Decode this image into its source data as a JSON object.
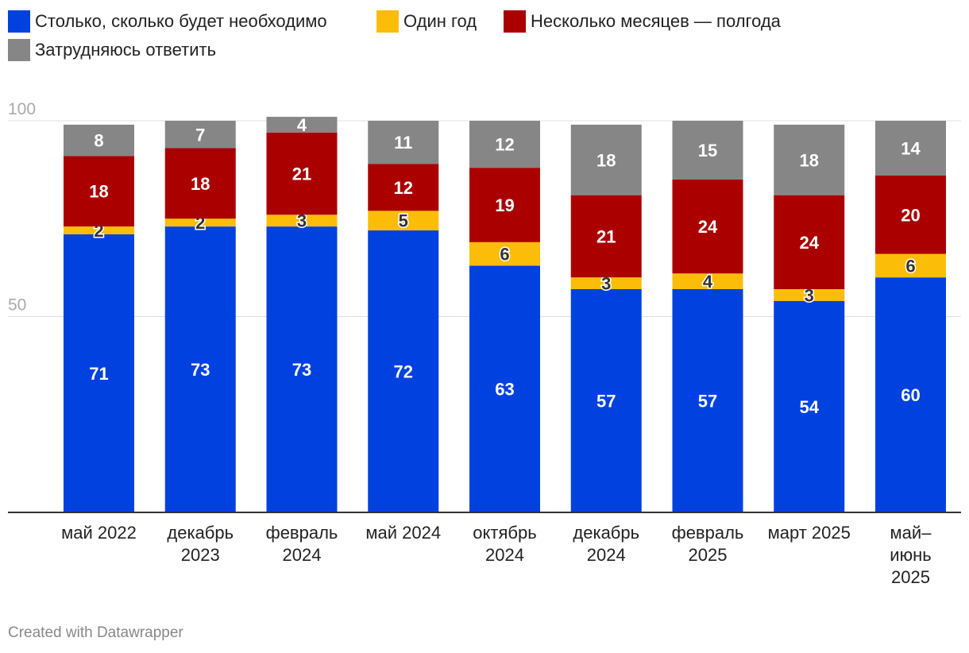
{
  "chart_data": {
    "type": "bar",
    "stacked": true,
    "categories": [
      [
        "май 2022"
      ],
      [
        "декабрь",
        "2023"
      ],
      [
        "февраль",
        "2024"
      ],
      [
        "май 2024"
      ],
      [
        "октябрь",
        "2024"
      ],
      [
        "декабрь",
        "2024"
      ],
      [
        "февраль",
        "2025"
      ],
      [
        "март 2025"
      ],
      [
        "май–",
        "июнь",
        "2025"
      ]
    ],
    "series": [
      {
        "name": "Столько, сколько будет необходимо",
        "color": "#0041e0",
        "label_color": "#ffffff",
        "values": [
          71,
          73,
          73,
          72,
          63,
          57,
          57,
          54,
          60
        ]
      },
      {
        "name": "Один год",
        "color": "#fbbd08",
        "label_color": "#333333",
        "values": [
          2,
          2,
          3,
          5,
          6,
          3,
          4,
          3,
          6
        ]
      },
      {
        "name": "Несколько месяцев — полгода",
        "color": "#aa0000",
        "label_color": "#ffffff",
        "values": [
          18,
          18,
          21,
          12,
          19,
          21,
          24,
          24,
          20
        ]
      },
      {
        "name": "Затрудняюсь ответить",
        "color": "#868686",
        "label_color": "#ffffff",
        "values": [
          8,
          7,
          4,
          11,
          12,
          18,
          15,
          18,
          14
        ]
      }
    ],
    "y_ticks": [
      50,
      100
    ],
    "ylim": [
      0,
      100
    ],
    "legend_position": "top-left",
    "grid": true
  },
  "footer": {
    "credit": "Created with Datawrapper"
  }
}
